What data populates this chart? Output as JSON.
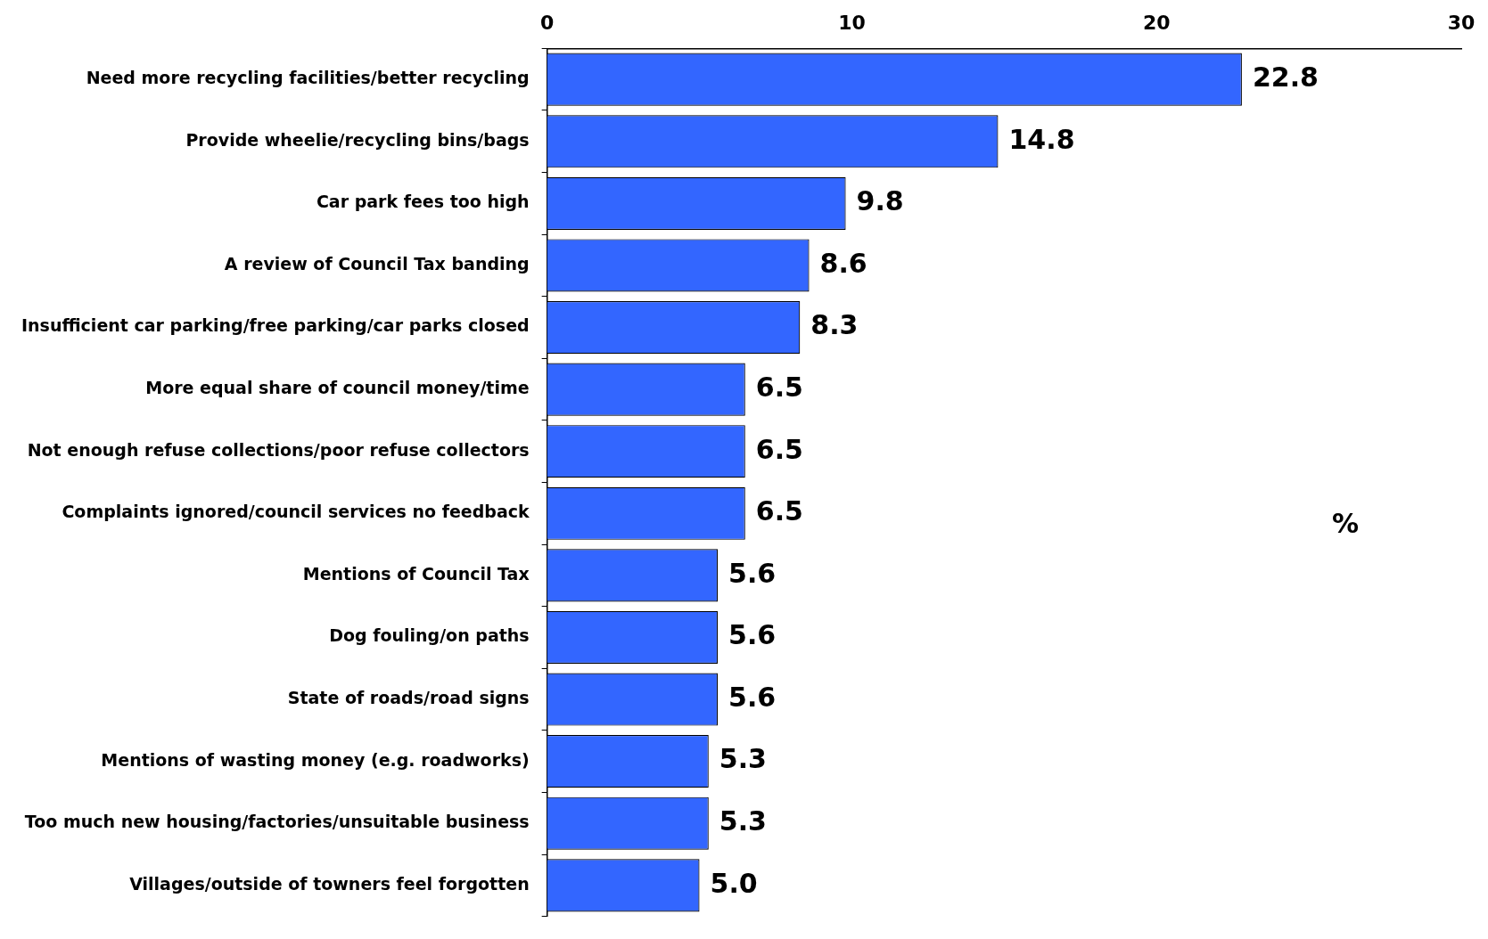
{
  "chart_data": {
    "type": "bar",
    "orientation": "horizontal",
    "categories": [
      "Need more recycling facilities/better recycling",
      "Provide wheelie/recycling bins/bags",
      "Car park fees too high",
      "A review of Council Tax banding",
      "Insufficient car parking/free parking/car parks closed",
      "More equal share of council money/time",
      "Not enough refuse collections/poor refuse collectors",
      "Complaints ignored/council services no feedback",
      "Mentions of Council Tax",
      "Dog fouling/on paths",
      "State of roads/road signs",
      "Mentions of wasting money (e.g. roadworks)",
      "Too much new housing/factories/unsuitable business",
      "Villages/outside of towners feel forgotten"
    ],
    "values": [
      22.8,
      14.8,
      9.8,
      8.6,
      8.3,
      6.5,
      6.5,
      6.5,
      5.6,
      5.6,
      5.6,
      5.3,
      5.3,
      5.0
    ],
    "color": "#3366ff",
    "xlim": [
      0,
      30
    ],
    "xticks": [
      0,
      10,
      20,
      30
    ],
    "annotations": [
      "%"
    ],
    "value_labels": [
      "22.8",
      "14.8",
      "9.8",
      "8.6",
      "8.3",
      "6.5",
      "6.5",
      "6.5",
      "5.6",
      "5.6",
      "5.6",
      "5.3",
      "5.3",
      "5.0"
    ],
    "grid": false,
    "legend": false
  }
}
